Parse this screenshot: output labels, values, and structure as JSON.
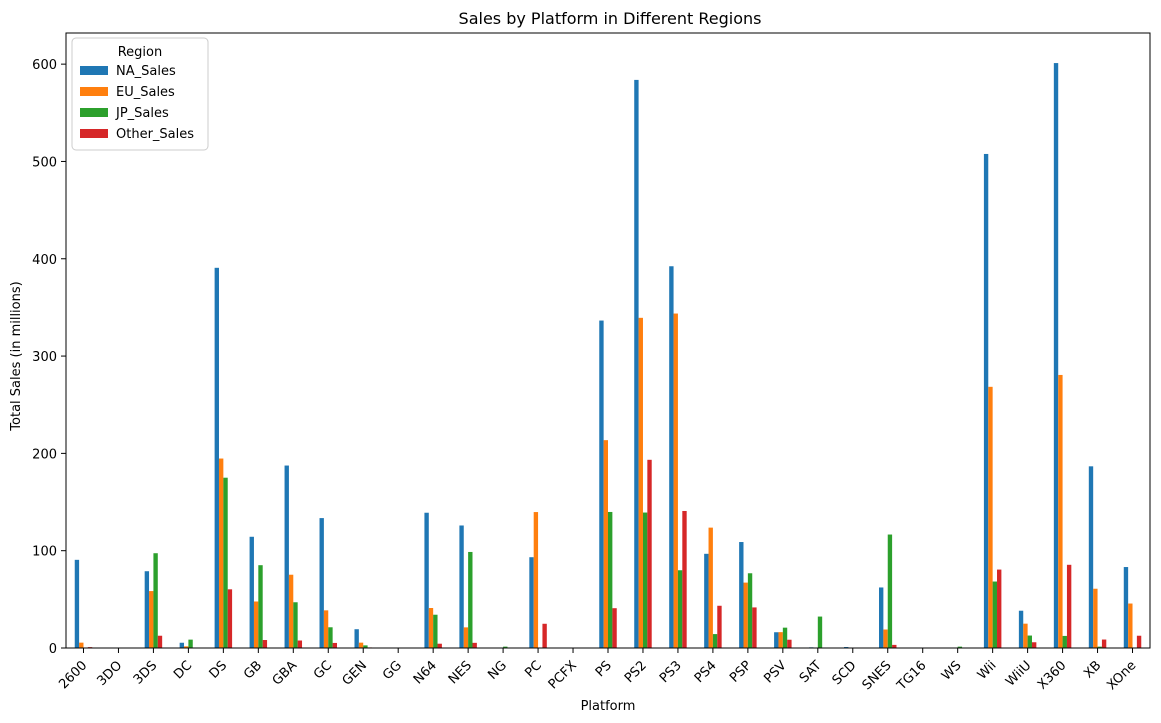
{
  "chart_data": {
    "type": "bar",
    "title": "Sales by Platform in Different Regions",
    "xlabel": "Platform",
    "ylabel": "Total Sales (in millions)",
    "ylim": [
      0,
      632
    ],
    "yticks": [
      0,
      100,
      200,
      300,
      400,
      500,
      600
    ],
    "legend": {
      "title": "Region",
      "position": "top-left"
    },
    "categories": [
      "2600",
      "3DO",
      "3DS",
      "DC",
      "DS",
      "GB",
      "GBA",
      "GC",
      "GEN",
      "GG",
      "N64",
      "NES",
      "NG",
      "PC",
      "PCFX",
      "PS",
      "PS2",
      "PS3",
      "PS4",
      "PSP",
      "PSV",
      "SAT",
      "SCD",
      "SNES",
      "TG16",
      "WS",
      "Wii",
      "WiiU",
      "X360",
      "XB",
      "XOne"
    ],
    "series": [
      {
        "name": "NA_Sales",
        "color": "#1f77b4",
        "values": [
          90.6,
          0,
          78.9,
          5.4,
          390.7,
          114.3,
          187.5,
          133.5,
          19.3,
          0,
          139.0,
          125.9,
          0,
          93.3,
          0,
          336.5,
          583.8,
          392.3,
          96.8,
          108.9,
          16.2,
          0.7,
          1.0,
          62.2,
          0,
          0,
          507.7,
          38.3,
          601.1,
          186.7,
          83.2
        ]
      },
      {
        "name": "EU_Sales",
        "color": "#ff7f0e",
        "values": [
          5.5,
          0,
          58.5,
          1.7,
          194.7,
          47.8,
          75.3,
          38.7,
          5.5,
          0,
          41.1,
          21.2,
          0,
          139.7,
          0,
          213.6,
          339.3,
          343.7,
          123.7,
          67.2,
          16.3,
          0.5,
          0.4,
          19.0,
          0,
          0,
          268.4,
          25.0,
          280.6,
          60.9,
          45.7
        ]
      },
      {
        "name": "JP_Sales",
        "color": "#2ca02c",
        "values": [
          0,
          0.1,
          97.4,
          8.6,
          175.0,
          85.1,
          47.0,
          21.3,
          2.7,
          0.04,
          34.2,
          98.7,
          1.4,
          0.2,
          0.03,
          139.8,
          139.2,
          79.9,
          14.3,
          76.8,
          20.9,
          32.3,
          0.5,
          116.6,
          0.2,
          1.4,
          68.3,
          12.8,
          12.4,
          1.4,
          0.3
        ]
      },
      {
        "name": "Other_Sales",
        "color": "#d62728",
        "values": [
          0.9,
          0,
          12.6,
          0.3,
          60.3,
          8.2,
          7.7,
          5.2,
          0.6,
          0,
          4.4,
          5.3,
          0,
          24.9,
          0,
          40.9,
          193.4,
          140.8,
          43.4,
          41.7,
          8.5,
          0,
          0,
          3.2,
          0,
          0,
          80.6,
          5.9,
          85.5,
          8.7,
          12.6
        ]
      }
    ]
  }
}
